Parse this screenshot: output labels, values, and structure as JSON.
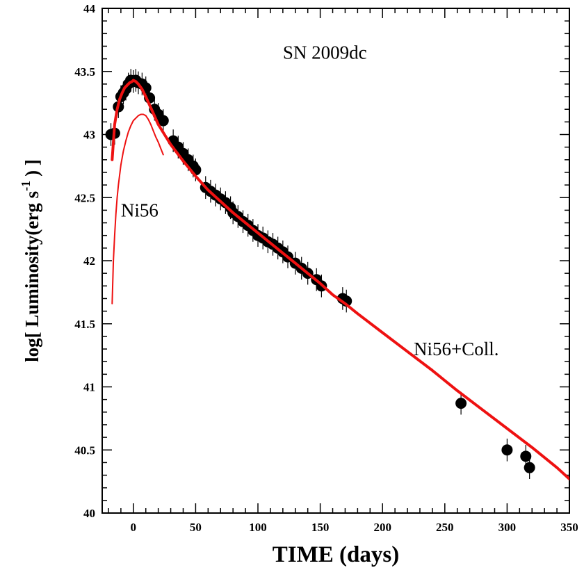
{
  "chart_data": {
    "type": "scatter",
    "title": "",
    "xlabel": "TIME (days)",
    "ylabel": {
      "main": "log[ Luminosity(erg s",
      "superscript": "-1",
      "tail": ") ]"
    },
    "xlim": [
      -25,
      350
    ],
    "ylim": [
      40,
      44
    ],
    "x_ticks": [
      0,
      50,
      100,
      150,
      200,
      250,
      300,
      350
    ],
    "y_ticks": [
      40,
      40.5,
      41,
      41.5,
      42,
      42.5,
      43,
      43.5,
      44
    ],
    "x_tick_labels": [
      "0",
      "50",
      "100",
      "150",
      "200",
      "250",
      "300",
      "350"
    ],
    "y_tick_labels": [
      "40",
      "40.5",
      "41",
      "41.5",
      "42",
      "42.5",
      "43",
      "43.5",
      "44"
    ],
    "grid": false,
    "annotations": [
      {
        "text": "SN 2009dc",
        "x": 120,
        "y": 43.6
      },
      {
        "text": "Ni56",
        "x": -10,
        "y": 42.35
      },
      {
        "text": "Ni56+Coll.",
        "x": 225,
        "y": 41.25
      }
    ],
    "series": [
      {
        "kind": "points",
        "color": "#000000",
        "error": 0.09,
        "x": [
          -18,
          -15,
          -12,
          -10,
          -8,
          -6,
          -4,
          -2,
          0,
          2,
          4,
          7,
          10,
          13,
          17,
          20,
          24,
          32,
          36,
          40,
          44,
          48,
          50,
          58,
          62,
          66,
          70,
          74,
          78,
          80,
          84,
          88,
          92,
          96,
          100,
          104,
          108,
          112,
          116,
          120,
          124,
          130,
          135,
          140,
          147,
          151,
          168,
          171,
          263,
          300,
          315,
          318
        ],
        "y": [
          43.0,
          43.01,
          43.22,
          43.3,
          43.33,
          43.36,
          43.4,
          43.43,
          43.42,
          43.43,
          43.41,
          43.4,
          43.37,
          43.29,
          43.2,
          43.16,
          43.11,
          42.95,
          42.9,
          42.85,
          42.8,
          42.75,
          42.72,
          42.58,
          42.55,
          42.52,
          42.49,
          42.46,
          42.42,
          42.38,
          42.35,
          42.31,
          42.28,
          42.24,
          42.2,
          42.18,
          42.15,
          42.13,
          42.1,
          42.07,
          42.03,
          41.98,
          41.94,
          41.9,
          41.85,
          41.8,
          41.7,
          41.68,
          40.87,
          40.5,
          40.45,
          40.36
        ]
      },
      {
        "kind": "line",
        "color": "#ee1111",
        "width": 4,
        "x": [
          -17,
          -15,
          -13,
          -11,
          -9,
          -7,
          -5,
          -3,
          -1,
          0,
          2,
          4,
          7,
          10,
          15,
          20,
          30,
          40,
          50,
          60,
          70,
          80,
          90,
          100,
          110,
          120,
          130,
          140,
          150,
          160,
          170,
          180,
          200,
          220,
          240,
          260,
          280,
          300,
          320,
          340,
          350
        ],
        "y": [
          42.8,
          43.08,
          43.2,
          43.28,
          43.33,
          43.37,
          43.39,
          43.41,
          43.42,
          43.43,
          43.42,
          43.4,
          43.36,
          43.3,
          43.19,
          43.08,
          42.92,
          42.79,
          42.67,
          42.56,
          42.47,
          42.38,
          42.3,
          42.22,
          42.14,
          42.06,
          41.98,
          41.9,
          41.82,
          41.73,
          41.66,
          41.58,
          41.43,
          41.28,
          41.13,
          40.97,
          40.82,
          40.67,
          40.52,
          40.36,
          40.27
        ]
      },
      {
        "kind": "line",
        "color": "#ee1111",
        "width": 2,
        "x": [
          -17,
          -16,
          -15,
          -14,
          -13,
          -12,
          -10,
          -8,
          -6,
          -4,
          -2,
          0,
          2,
          4,
          6,
          8,
          10,
          12,
          14,
          16,
          18,
          20,
          22,
          24
        ],
        "y": [
          41.66,
          42.0,
          42.2,
          42.37,
          42.5,
          42.6,
          42.76,
          42.87,
          42.95,
          43.02,
          43.07,
          43.11,
          43.13,
          43.15,
          43.16,
          43.16,
          43.15,
          43.12,
          43.08,
          43.03,
          42.98,
          42.94,
          42.89,
          42.84
        ]
      }
    ]
  }
}
